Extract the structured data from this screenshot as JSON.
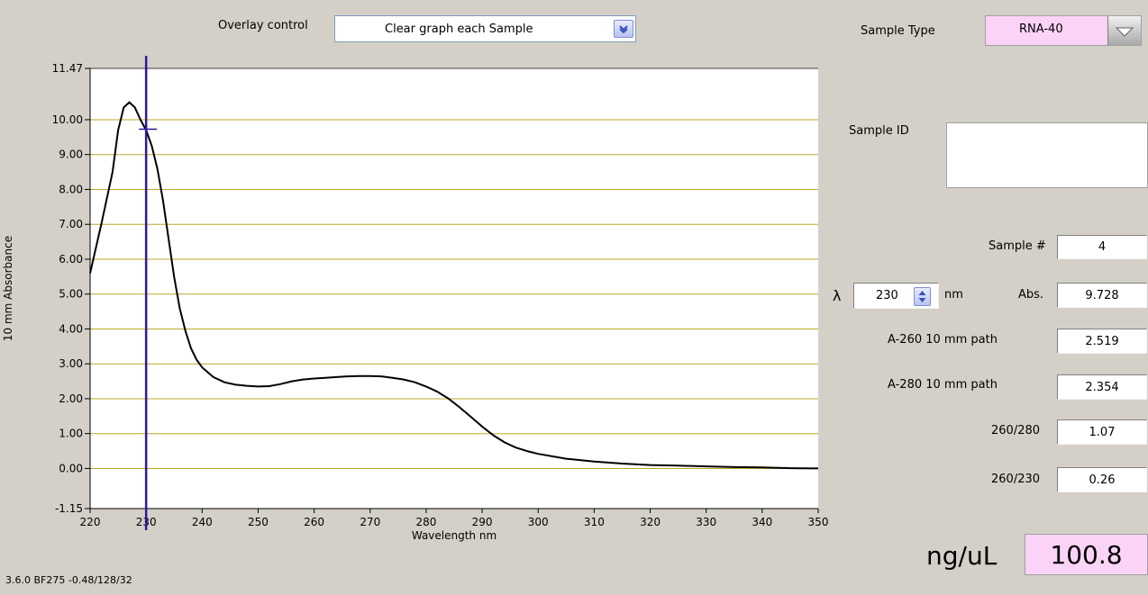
{
  "overlay": {
    "label": "Overlay control",
    "value": "Clear graph each Sample"
  },
  "sample_type": {
    "label": "Sample Type",
    "value": "RNA-40"
  },
  "sample_id": {
    "label": "Sample ID",
    "value": ""
  },
  "sample_number": {
    "label": "Sample #",
    "value": "4"
  },
  "lambda": {
    "symbol": "λ",
    "value": "230",
    "unit": "nm"
  },
  "abs": {
    "label": "Abs.",
    "value": "9.728"
  },
  "a260": {
    "label": "A-260 10 mm path",
    "value": "2.519"
  },
  "a280": {
    "label": "A-280 10 mm path",
    "value": "2.354"
  },
  "ratio_260_280": {
    "label": "260/280",
    "value": "1.07"
  },
  "ratio_260_230": {
    "label": "260/230",
    "value": "0.26"
  },
  "concentration": {
    "label": "ng/uL",
    "value": "100.8"
  },
  "version": "3.6.0 BF275 -0.48/128/32",
  "colors": {
    "background": "#d4d0c8",
    "plot_background": "#ffffff",
    "gridline": "#b8a82a",
    "cursor": "#2b1a9a",
    "curve": "#000000",
    "pink_field": "#fbd3f7"
  },
  "icons": {
    "overlay_dropdown": "chevron-down-icon",
    "sample_type_dropdown": "triangle-down-icon",
    "lambda_spinner": "up-down-arrows-icon"
  },
  "chart_data": {
    "type": "line",
    "title": "",
    "xlabel": "Wavelength nm",
    "ylabel": "10 mm Absorbance",
    "xlim": [
      220,
      350
    ],
    "ylim": [
      -1.15,
      11.47
    ],
    "xticks": [
      "220",
      "230",
      "240",
      "250",
      "260",
      "270",
      "280",
      "290",
      "300",
      "310",
      "320",
      "330",
      "340",
      "350"
    ],
    "yticks": [
      "11.47",
      "10.00",
      "9.00",
      "8.00",
      "7.00",
      "6.00",
      "5.00",
      "4.00",
      "3.00",
      "2.00",
      "1.00",
      "0.00",
      "-1.15"
    ],
    "grid": true,
    "cursor_x": 230,
    "cursor_marker_y": 9.728,
    "series": [
      {
        "x": [
          220,
          222,
          224,
          225,
          226,
          227,
          228,
          229,
          230,
          231,
          232,
          233,
          234,
          235,
          236,
          237,
          238,
          239,
          240,
          242,
          244,
          246,
          248,
          250,
          252,
          254,
          256,
          258,
          260,
          262,
          264,
          266,
          268,
          270,
          272,
          274,
          276,
          278,
          280,
          282,
          284,
          286,
          288,
          290,
          292,
          294,
          296,
          298,
          300,
          305,
          310,
          315,
          320,
          325,
          330,
          335,
          340,
          345,
          350
        ],
        "y": [
          5.6,
          7.0,
          8.5,
          9.7,
          10.35,
          10.5,
          10.35,
          10.0,
          9.7,
          9.25,
          8.6,
          7.7,
          6.6,
          5.5,
          4.6,
          3.95,
          3.45,
          3.12,
          2.9,
          2.62,
          2.47,
          2.4,
          2.37,
          2.35,
          2.36,
          2.42,
          2.5,
          2.55,
          2.58,
          2.6,
          2.62,
          2.64,
          2.65,
          2.65,
          2.64,
          2.6,
          2.55,
          2.47,
          2.35,
          2.2,
          2.0,
          1.75,
          1.48,
          1.2,
          0.95,
          0.75,
          0.6,
          0.5,
          0.42,
          0.28,
          0.2,
          0.14,
          0.1,
          0.08,
          0.06,
          0.04,
          0.03,
          0.01,
          0.0
        ]
      }
    ]
  }
}
